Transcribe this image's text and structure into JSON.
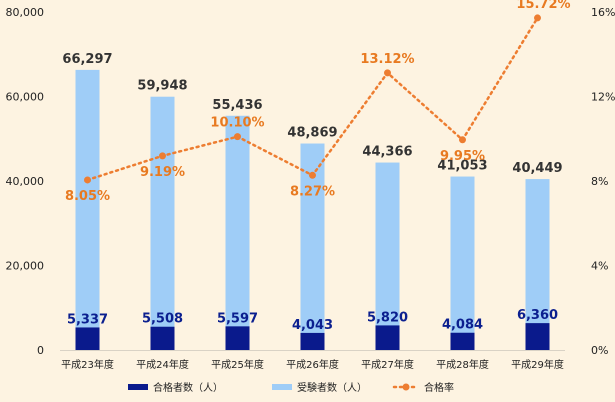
{
  "chart_data": {
    "type": "bar",
    "categories": [
      "平成23年度",
      "平成24年度",
      "平成25年度",
      "平成26年度",
      "平成27年度",
      "平成28年度",
      "平成29年度"
    ],
    "series": [
      {
        "name": "合格者数（人）",
        "type": "bar",
        "axis": "left",
        "color": "#0a1a8c",
        "values": [
          5337,
          5508,
          5597,
          4043,
          5820,
          4084,
          6360
        ],
        "labels": [
          "5,337",
          "5,508",
          "5,597",
          "4,043",
          "5,820",
          "4,084",
          "6,360"
        ]
      },
      {
        "name": "受験者数（人）",
        "type": "bar",
        "axis": "left",
        "color": "#9fcdf7",
        "values": [
          66297,
          59948,
          55436,
          48869,
          44366,
          41053,
          40449
        ],
        "labels": [
          "66,297",
          "59,948",
          "55,436",
          "48,869",
          "44,366",
          "41,053",
          "40,449"
        ]
      },
      {
        "name": "合格率",
        "type": "line",
        "axis": "right",
        "color": "#ed7d31",
        "values": [
          8.05,
          9.19,
          10.1,
          8.27,
          13.12,
          9.95,
          15.72
        ],
        "labels": [
          "8.05%",
          "9.19%",
          "10.10%",
          "8.27%",
          "13.12%",
          "9.95%",
          "15.72%"
        ]
      }
    ],
    "y_left": {
      "range": [
        0,
        80000
      ],
      "ticks": [
        "0",
        "20,000",
        "40,000",
        "60,000",
        "80,000"
      ]
    },
    "y_right": {
      "range": [
        0,
        16
      ],
      "ticks": [
        "0%",
        "4%",
        "8%",
        "12%",
        "16%"
      ]
    },
    "title": "",
    "xlabel": "",
    "ylabel": "",
    "grid": false,
    "legend_position": "bottom"
  }
}
